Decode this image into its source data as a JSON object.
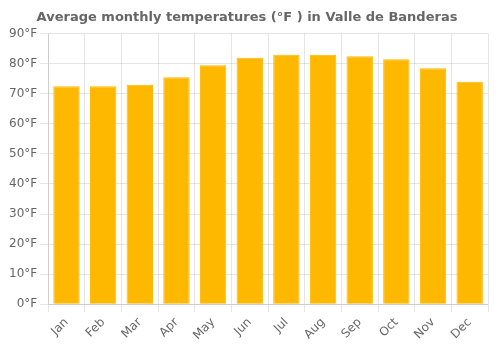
{
  "chart_data": {
    "type": "bar",
    "title": "Average monthly temperatures (°F ) in Valle de Banderas",
    "categories": [
      "Jan",
      "Feb",
      "Mar",
      "Apr",
      "May",
      "Jun",
      "Jul",
      "Aug",
      "Sep",
      "Oct",
      "Nov",
      "Dec"
    ],
    "values": [
      72.5,
      72.5,
      73,
      75.5,
      79.5,
      82,
      83,
      83,
      82.5,
      81.5,
      78.5,
      74
    ],
    "color": "#FFB800",
    "ylim": [
      0,
      90
    ],
    "yticks": [
      {
        "value": 0,
        "label": "0°F"
      },
      {
        "value": 10,
        "label": "10°F"
      },
      {
        "value": 20,
        "label": "20°F"
      },
      {
        "value": 30,
        "label": "30°F"
      },
      {
        "value": 40,
        "label": "40°F"
      },
      {
        "value": 50,
        "label": "50°F"
      },
      {
        "value": 60,
        "label": "60°F"
      },
      {
        "value": 70,
        "label": "70°F"
      },
      {
        "value": 80,
        "label": "80°F"
      },
      {
        "value": 90,
        "label": "90°F"
      }
    ],
    "grid": true
  }
}
